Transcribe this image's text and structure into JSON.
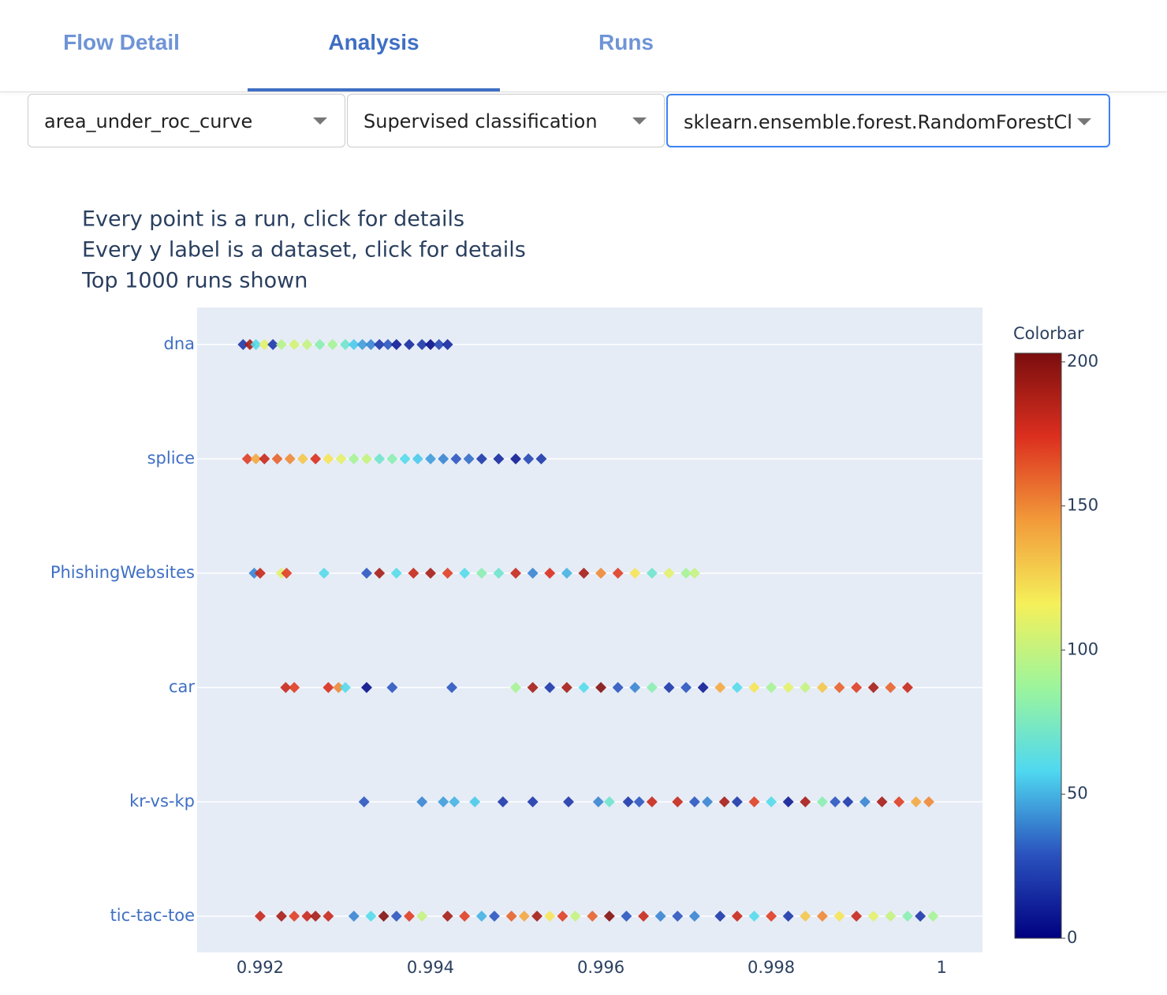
{
  "tabs": [
    "Flow Detail",
    "Analysis",
    "Runs"
  ],
  "active_tab": 1,
  "dropdowns": [
    "area_under_roc_curve",
    "Supervised classification",
    "sklearn.ensemble.forest.RandomForestCl"
  ],
  "chart_data": {
    "type": "scatter",
    "annotation": [
      "Every point is a run, click for details",
      "Every y label is a dataset, click for details",
      "Top 1000 runs shown"
    ],
    "categories": [
      "dna",
      "splice",
      "PhishingWebsites",
      "car",
      "kr-vs-kp",
      "tic-tac-toe"
    ],
    "xlim": [
      0.99126,
      1.00048
    ],
    "xticks": [
      0.992,
      0.994,
      0.996,
      0.998,
      1
    ],
    "grid": true,
    "colorscale": [
      "#000080",
      "#2a52be",
      "#4fd8f0",
      "#9cf59c",
      "#f5f05a",
      "#f29a3a",
      "#dc2f1f",
      "#7a0e0e"
    ],
    "colorbar": {
      "title": "Colorbar",
      "lim": [
        0,
        203
      ],
      "ticks": [
        0,
        50,
        100,
        150,
        200
      ]
    },
    "series": [
      {
        "x": [
          0.9918,
          0.99188,
          0.99195,
          0.99205,
          0.99215,
          0.99225,
          0.9924,
          0.99255,
          0.9927,
          0.99285,
          0.993,
          0.9931,
          0.9932,
          0.9933,
          0.9934,
          0.9935,
          0.9936,
          0.99375,
          0.9939,
          0.994,
          0.9941,
          0.9942
        ],
        "values": [
          20,
          190,
          60,
          110,
          20,
          95,
          105,
          100,
          80,
          90,
          70,
          55,
          45,
          40,
          20,
          30,
          10,
          15,
          20,
          5,
          25,
          15
        ]
      },
      {
        "x": [
          0.99185,
          0.99195,
          0.99205,
          0.9922,
          0.99235,
          0.9925,
          0.99265,
          0.9928,
          0.99295,
          0.9931,
          0.99325,
          0.9934,
          0.99355,
          0.9937,
          0.99385,
          0.994,
          0.99415,
          0.9943,
          0.99445,
          0.9946,
          0.9948,
          0.995,
          0.99515,
          0.9953
        ],
        "values": [
          170,
          140,
          180,
          160,
          150,
          130,
          175,
          120,
          110,
          90,
          100,
          70,
          80,
          60,
          55,
          45,
          40,
          30,
          35,
          20,
          15,
          10,
          25,
          20
        ]
      },
      {
        "x": [
          0.99193,
          0.992,
          0.99225,
          0.99231,
          0.99275,
          0.99325,
          0.9934,
          0.9936,
          0.9938,
          0.994,
          0.9942,
          0.9944,
          0.9946,
          0.9948,
          0.995,
          0.9952,
          0.9954,
          0.9956,
          0.9958,
          0.996,
          0.9962,
          0.9964,
          0.9966,
          0.9968,
          0.997,
          0.9971
        ],
        "values": [
          40,
          180,
          110,
          170,
          60,
          30,
          190,
          60,
          180,
          190,
          170,
          60,
          80,
          70,
          180,
          40,
          175,
          50,
          190,
          150,
          170,
          120,
          70,
          110,
          90,
          100
        ]
      },
      {
        "x": [
          0.9923,
          0.9924,
          0.9928,
          0.99292,
          0.993,
          0.99325,
          0.99355,
          0.99425,
          0.995,
          0.9952,
          0.9954,
          0.9956,
          0.9958,
          0.996,
          0.9962,
          0.9964,
          0.9966,
          0.9968,
          0.997,
          0.9972,
          0.9974,
          0.9976,
          0.9978,
          0.998,
          0.9982,
          0.9984,
          0.9986,
          0.9988,
          0.999,
          0.9992,
          0.9994,
          0.9996
        ],
        "values": [
          180,
          170,
          175,
          150,
          60,
          5,
          30,
          30,
          90,
          190,
          20,
          190,
          60,
          200,
          30,
          40,
          80,
          20,
          30,
          10,
          140,
          60,
          120,
          90,
          110,
          100,
          130,
          160,
          170,
          190,
          160,
          180
        ]
      },
      {
        "x": [
          0.99322,
          0.9939,
          0.99415,
          0.99428,
          0.99452,
          0.99485,
          0.9952,
          0.99562,
          0.99597,
          0.9961,
          0.99632,
          0.99645,
          0.9966,
          0.9969,
          0.9971,
          0.99725,
          0.99745,
          0.9976,
          0.9978,
          0.998,
          0.9982,
          0.9984,
          0.9986,
          0.99875,
          0.9989,
          0.9991,
          0.9993,
          0.9995,
          0.9997,
          0.99985
        ],
        "values": [
          30,
          40,
          45,
          50,
          55,
          20,
          20,
          20,
          40,
          70,
          20,
          30,
          180,
          180,
          30,
          40,
          190,
          20,
          170,
          60,
          10,
          190,
          80,
          30,
          20,
          40,
          190,
          170,
          140,
          150
        ]
      },
      {
        "x": [
          0.992,
          0.99225,
          0.9924,
          0.99255,
          0.99265,
          0.9928,
          0.9931,
          0.9933,
          0.99345,
          0.9936,
          0.99375,
          0.9939,
          0.9942,
          0.9944,
          0.9946,
          0.99475,
          0.99495,
          0.9951,
          0.99525,
          0.9954,
          0.99555,
          0.9957,
          0.9959,
          0.9961,
          0.9963,
          0.9965,
          0.9967,
          0.9969,
          0.9971,
          0.9974,
          0.9976,
          0.9978,
          0.998,
          0.9982,
          0.9984,
          0.9986,
          0.9988,
          0.999,
          0.9992,
          0.9994,
          0.9996,
          0.99975,
          0.9999
        ],
        "values": [
          180,
          190,
          170,
          180,
          190,
          180,
          40,
          60,
          200,
          30,
          170,
          100,
          190,
          170,
          50,
          30,
          160,
          140,
          190,
          120,
          170,
          100,
          160,
          200,
          30,
          180,
          40,
          30,
          40,
          20,
          180,
          60,
          170,
          20,
          130,
          150,
          120,
          180,
          110,
          100,
          80,
          20,
          90
        ]
      }
    ]
  }
}
